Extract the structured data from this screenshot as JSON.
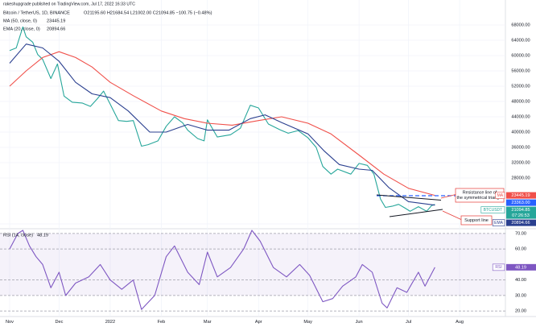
{
  "header": {
    "publisher": "rakeshupgrade published on TradingView.com, Jul 17, 2022 16:33 UTC",
    "symbol": "Bitcoin / TetherUS, 1D, BINANCE",
    "ohlc": "O21195.60 H21684.54 L21002.00 C21094.85 −100.75 (−0.48%)"
  },
  "chart_data": [
    {
      "type": "line",
      "xlim": [
        -5.86,
        300.8
      ],
      "xticks": [
        {
          "value": 0,
          "label": "Nov"
        },
        {
          "value": 30,
          "label": "Dec"
        },
        {
          "value": 61,
          "label": "2022"
        },
        {
          "value": 92,
          "label": "Feb"
        },
        {
          "value": 120,
          "label": "Mar"
        },
        {
          "value": 151,
          "label": "Apr"
        },
        {
          "value": 181,
          "label": "May"
        },
        {
          "value": 212,
          "label": "Jun"
        },
        {
          "value": 242,
          "label": "Jul"
        },
        {
          "value": 273,
          "label": "Aug"
        }
      ],
      "ylim": [
        15150,
        73470
      ],
      "yticks": [
        {
          "value": 68000,
          "label": "68000.00"
        },
        {
          "value": 64000,
          "label": "64000.00"
        },
        {
          "value": 60000,
          "label": "60000.00"
        },
        {
          "value": 56000,
          "label": "56000.00"
        },
        {
          "value": 52000,
          "label": "52000.00"
        },
        {
          "value": 48000,
          "label": "48000.00"
        },
        {
          "value": 44000,
          "label": "44000.00"
        },
        {
          "value": 40000,
          "label": "40000.00"
        },
        {
          "value": 36000,
          "label": "36000.00"
        },
        {
          "value": 32000,
          "label": "32000.00"
        },
        {
          "value": 28000,
          "label": "28000.00"
        },
        {
          "value": 16000,
          "label": "16000.00"
        }
      ],
      "grid": true,
      "series": [
        {
          "name": "BTCUSDT",
          "tag": "BTCUSDT",
          "countdown": "07:26:53",
          "color": "#26a69a",
          "x": [
            0,
            4,
            8,
            10,
            14,
            17,
            20,
            25,
            29,
            33,
            38,
            44,
            49,
            53,
            57,
            61,
            66,
            71,
            75,
            80,
            84,
            90,
            95,
            100,
            105,
            108,
            114,
            118,
            120,
            126,
            134,
            140,
            146,
            151,
            157,
            164,
            169,
            175,
            181,
            186,
            190,
            195,
            199,
            207,
            212,
            217,
            221,
            225,
            228,
            232,
            236,
            240,
            243,
            248,
            253,
            256,
            258
          ],
          "values": [
            61300,
            62000,
            67500,
            64900,
            63500,
            60300,
            59000,
            54000,
            57800,
            49400,
            47800,
            47600,
            46700,
            48600,
            50700,
            47300,
            43000,
            42800,
            43000,
            36300,
            36700,
            37700,
            41500,
            44000,
            42400,
            40500,
            38300,
            37700,
            43200,
            38700,
            39300,
            41000,
            47000,
            46300,
            42100,
            40600,
            39700,
            40400,
            38500,
            36000,
            31000,
            29000,
            30300,
            29000,
            31800,
            31300,
            29000,
            22500,
            20300,
            20600,
            21100,
            20100,
            19300,
            20500,
            19300,
            20800,
            21094.85
          ]
        },
        {
          "name": "MA (50, close, 0)",
          "tag": "MA",
          "color": "#f0504a",
          "x": [
            0,
            10,
            20,
            30,
            40,
            50,
            61,
            75,
            92,
            106,
            120,
            135,
            151,
            165,
            181,
            195,
            212,
            227,
            242,
            258
          ],
          "values": [
            52000,
            56000,
            59500,
            61000,
            59500,
            57000,
            53000,
            49500,
            45500,
            43500,
            42300,
            41800,
            43000,
            44000,
            42300,
            39500,
            34000,
            29000,
            25300,
            23445.19
          ]
        },
        {
          "name": "EMA (20, close, 0)",
          "tag": "EMA",
          "color": "#2a3f8f",
          "x": [
            0,
            10,
            20,
            30,
            40,
            50,
            61,
            72,
            85,
            95,
            108,
            120,
            133,
            146,
            155,
            165,
            181,
            191,
            200,
            212,
            220,
            230,
            242,
            258
          ],
          "values": [
            58000,
            63000,
            62000,
            58500,
            53000,
            50000,
            49000,
            45500,
            40000,
            40000,
            42000,
            40500,
            40500,
            43500,
            44500,
            42500,
            39500,
            35000,
            31500,
            30300,
            30000,
            25500,
            21800,
            20894.66
          ]
        }
      ],
      "level": {
        "value": 23363,
        "label": "23363.00",
        "color": "#2962ff"
      },
      "annotations": [
        "Resistance line of the symmetrical triangle",
        "Support line"
      ]
    },
    {
      "type": "line",
      "xlim": [
        -5.86,
        300.8
      ],
      "ylim": [
        18,
        72
      ],
      "yticks": [
        {
          "value": 70,
          "label": "70.00"
        },
        {
          "value": 60,
          "label": "60.00"
        },
        {
          "value": 40,
          "label": "40.00"
        },
        {
          "value": 30,
          "label": "30.00"
        },
        {
          "value": 20,
          "label": "20.00"
        }
      ],
      "series": [
        {
          "name": "RSI (14, close)",
          "tag": "RSI",
          "color": "#7e57c2",
          "x": [
            0,
            5,
            8,
            12,
            16,
            20,
            25,
            30,
            34,
            40,
            48,
            55,
            61,
            68,
            75,
            80,
            88,
            95,
            100,
            108,
            115,
            120,
            126,
            134,
            142,
            147,
            152,
            160,
            168,
            176,
            182,
            190,
            196,
            202,
            210,
            214,
            220,
            226,
            229,
            235,
            241,
            248,
            252,
            258
          ],
          "values": [
            60,
            70,
            72,
            62,
            55,
            50,
            35,
            45,
            30,
            38,
            42,
            50,
            40,
            34,
            40,
            21,
            30,
            55,
            62,
            45,
            37,
            58,
            42,
            48,
            60,
            72,
            65,
            48,
            42,
            50,
            43,
            26,
            28,
            36,
            42,
            50,
            45,
            25,
            22,
            35,
            32,
            45,
            36,
            48.19
          ]
        }
      ]
    }
  ]
}
